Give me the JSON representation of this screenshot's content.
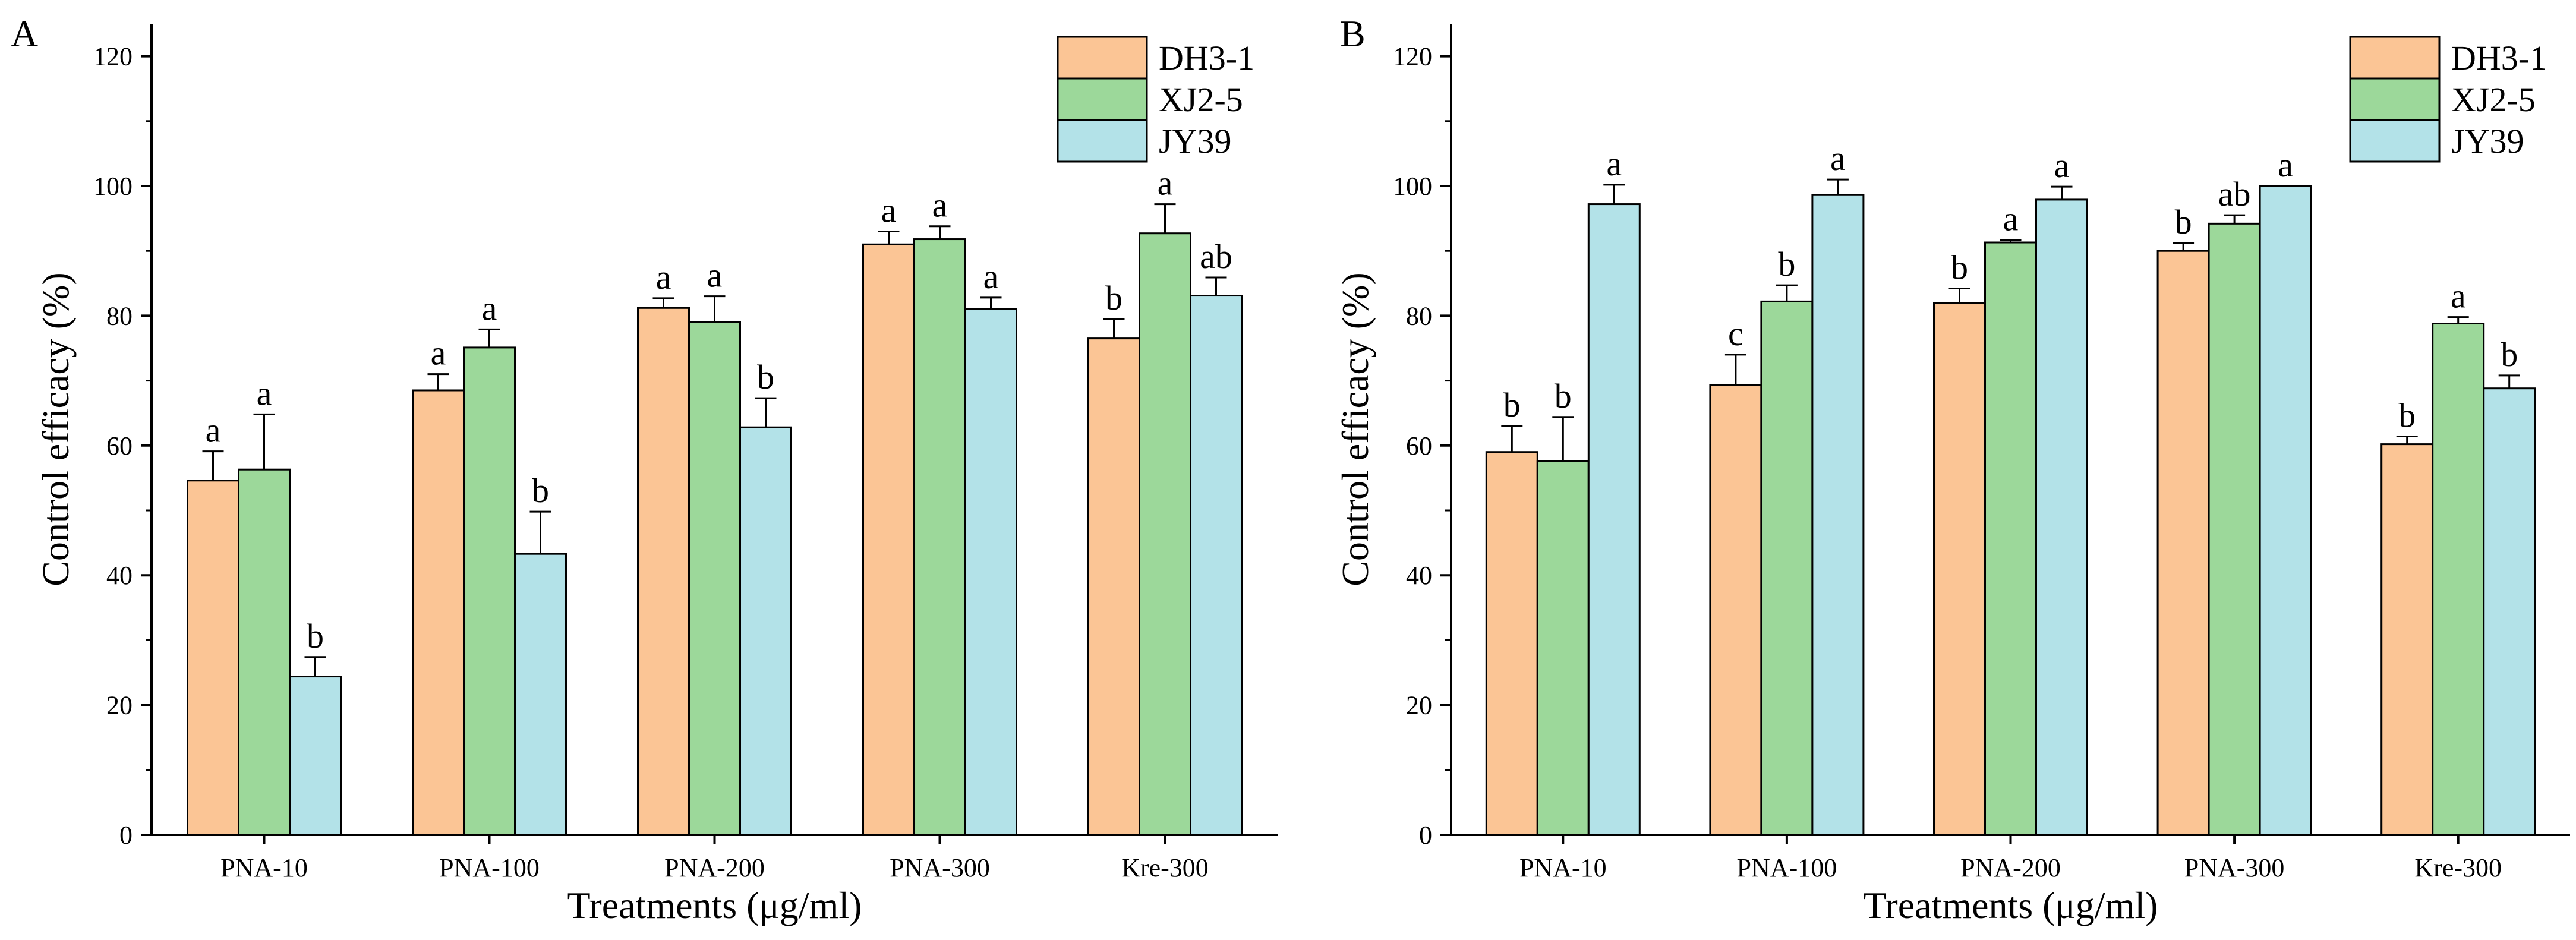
{
  "chart_data": [
    {
      "type": "bar",
      "panel_label": "A",
      "title": "",
      "xlabel": "Treatments (μg/ml)",
      "ylabel": "Control efficacy (%)",
      "ylim": [
        0,
        125
      ],
      "yticks": [
        0,
        20,
        40,
        60,
        80,
        100,
        120
      ],
      "grid": false,
      "legend_position": "top-right",
      "categories": [
        "PNA-10",
        "PNA-100",
        "PNA-200",
        "PNA-300",
        "Kre-300"
      ],
      "series": [
        {
          "name": "DH3-1",
          "color": "#FBC595",
          "values": [
            54.6,
            68.5,
            81.2,
            91.0,
            76.5
          ],
          "errors": [
            4.5,
            2.5,
            1.5,
            2.0,
            3.0
          ],
          "labels": [
            "a",
            "a",
            "a",
            "a",
            "b"
          ]
        },
        {
          "name": "XJ2-5",
          "color": "#9CD89A",
          "values": [
            56.3,
            75.1,
            79.0,
            91.8,
            92.7
          ],
          "errors": [
            8.5,
            2.8,
            4.0,
            2.0,
            4.5
          ],
          "labels": [
            "a",
            "a",
            "a",
            "a",
            "a"
          ]
        },
        {
          "name": "JY39",
          "color": "#B3E2E8",
          "values": [
            24.4,
            43.3,
            62.8,
            81.0,
            83.1
          ],
          "errors": [
            3.0,
            6.5,
            4.5,
            1.8,
            2.8
          ],
          "labels": [
            "b",
            "b",
            "b",
            "a",
            "ab"
          ]
        }
      ]
    },
    {
      "type": "bar",
      "panel_label": "B",
      "title": "",
      "xlabel": "Treatments (μg/ml)",
      "ylabel": "Control efficacy (%)",
      "ylim": [
        0,
        125
      ],
      "yticks": [
        0,
        20,
        40,
        60,
        80,
        100,
        120
      ],
      "grid": false,
      "legend_position": "top-right",
      "categories": [
        "PNA-10",
        "PNA-100",
        "PNA-200",
        "PNA-300",
        "Kre-300"
      ],
      "series": [
        {
          "name": "DH3-1",
          "color": "#FBC595",
          "values": [
            59.0,
            69.3,
            82.0,
            90.0,
            60.2
          ],
          "errors": [
            4.0,
            4.7,
            2.2,
            1.2,
            1.2
          ],
          "labels": [
            "b",
            "c",
            "b",
            "b",
            "b"
          ]
        },
        {
          "name": "XJ2-5",
          "color": "#9CD89A",
          "values": [
            57.6,
            82.2,
            91.3,
            94.2,
            78.8
          ],
          "errors": [
            6.8,
            2.5,
            0.4,
            1.3,
            1.0
          ],
          "labels": [
            "b",
            "b",
            "a",
            "ab",
            "a"
          ]
        },
        {
          "name": "JY39",
          "color": "#B3E2E8",
          "values": [
            97.2,
            98.6,
            97.9,
            100.0,
            68.8
          ],
          "errors": [
            3.0,
            2.4,
            2.0,
            0.0,
            2.0
          ],
          "labels": [
            "a",
            "a",
            "a",
            "a",
            "b"
          ]
        }
      ]
    }
  ]
}
